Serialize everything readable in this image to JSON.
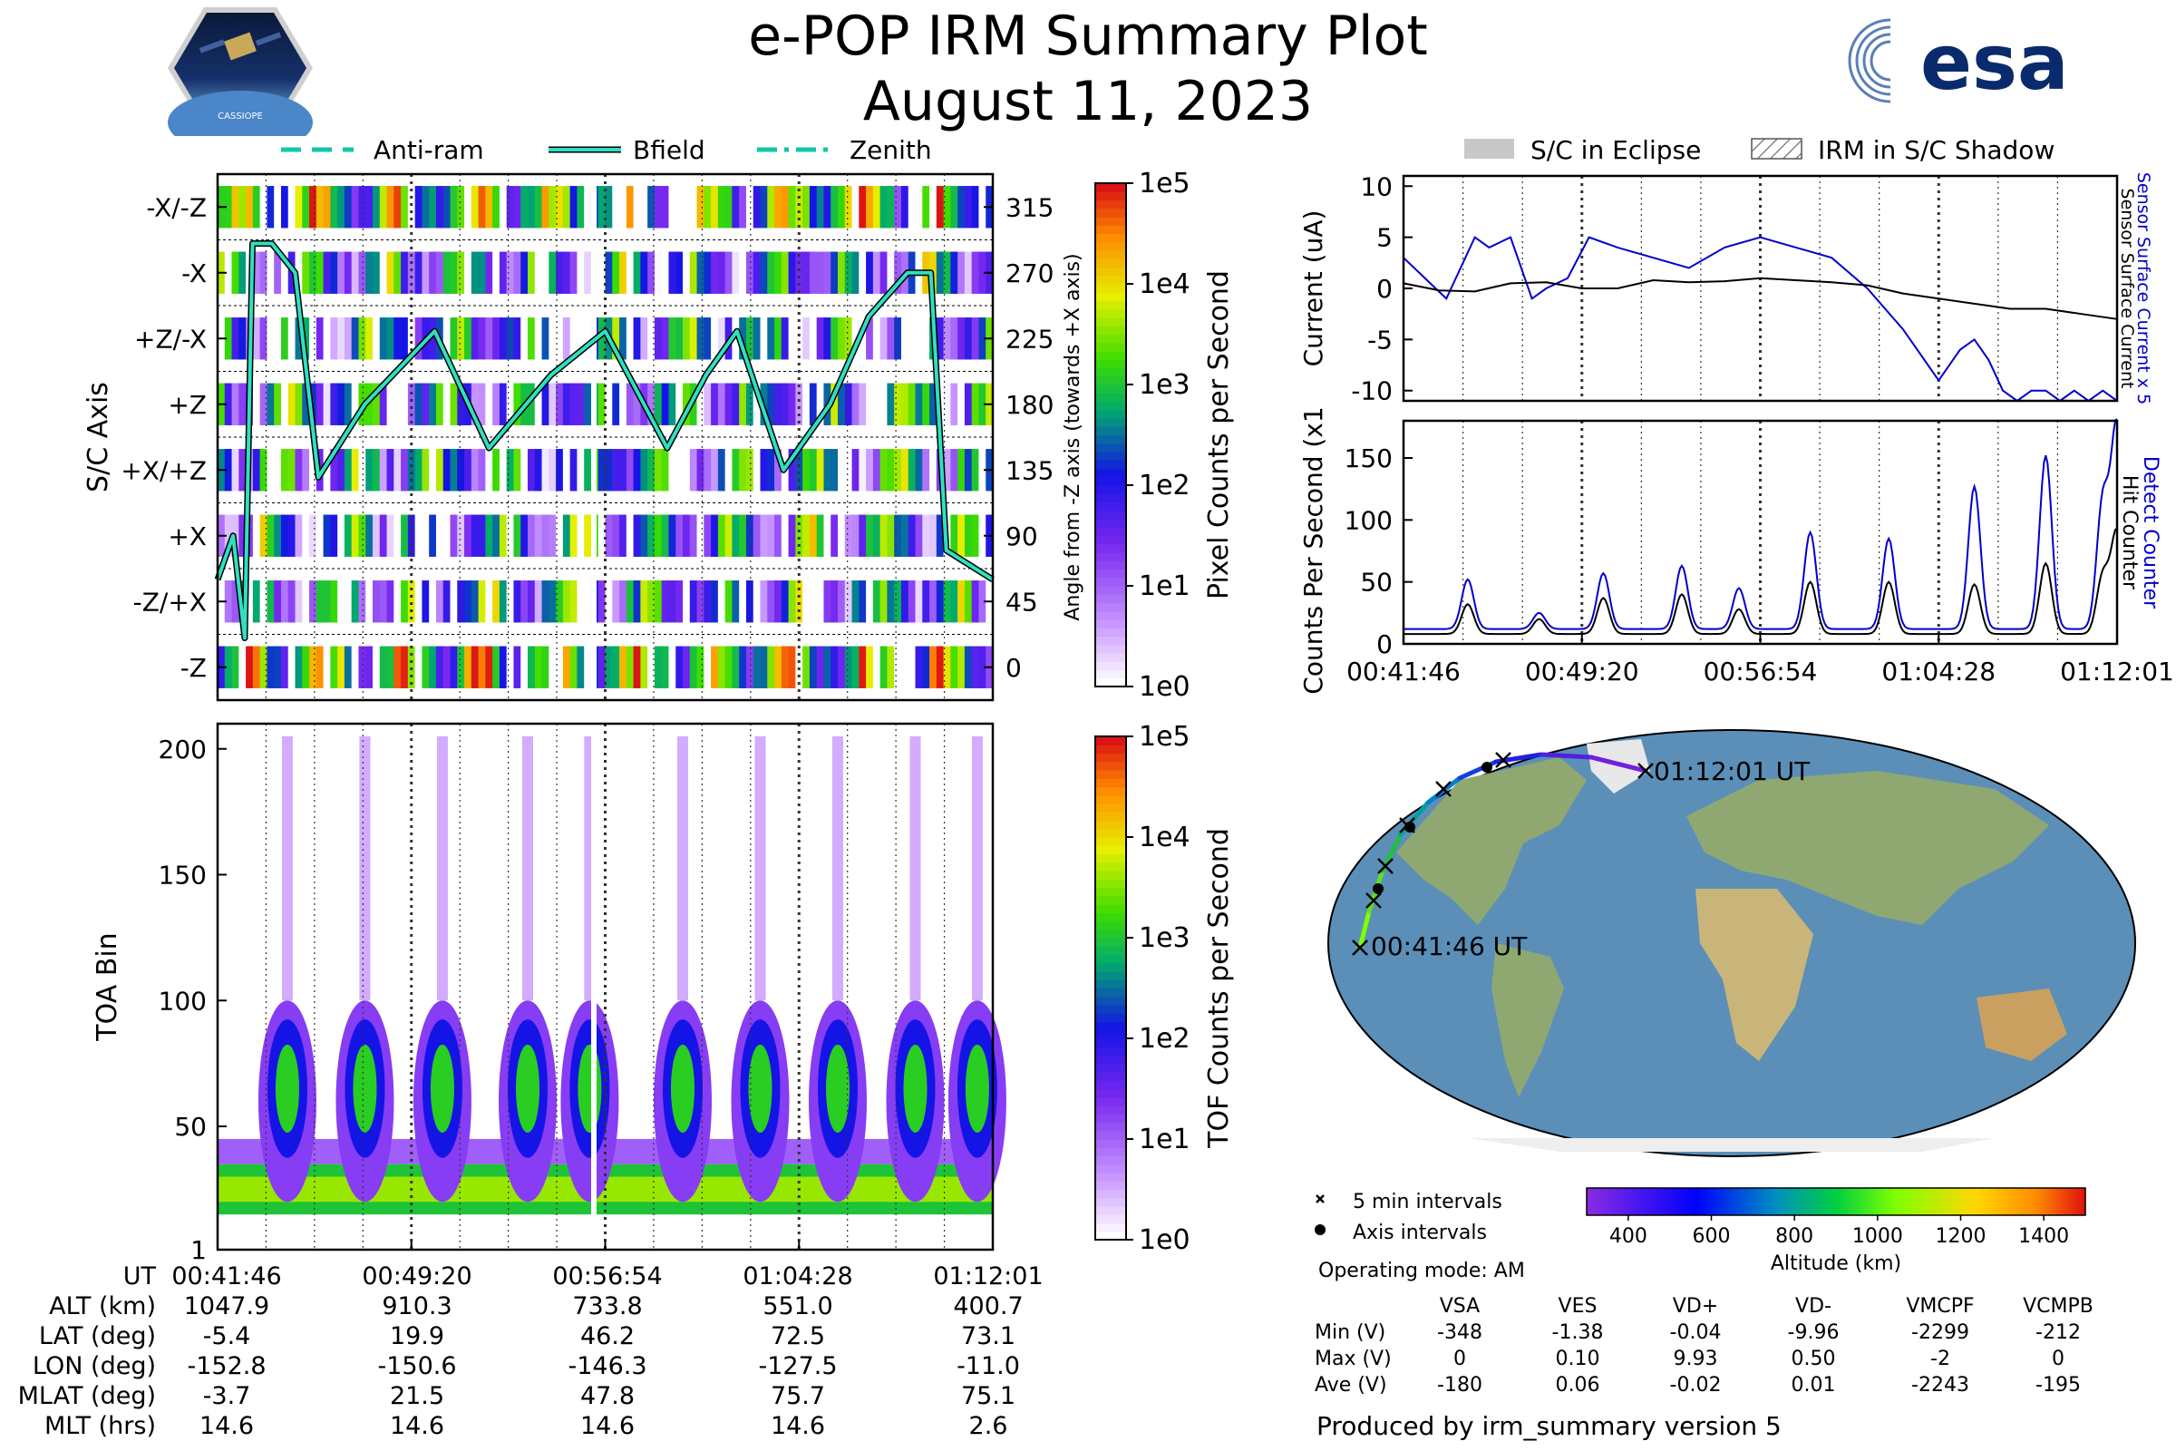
{
  "header": {
    "title": "e-POP IRM Summary Plot",
    "date": "August 11, 2023",
    "left_logo_text": "CASSIOPE",
    "right_logo_text": "esa"
  },
  "legend_top_left": {
    "anti_ram": "Anti-ram",
    "bfield": "Bfield",
    "zenith": "Zenith"
  },
  "legend_top_right": {
    "eclipse": "S/C in Eclipse",
    "shadow": "IRM in S/C Shadow"
  },
  "colors": {
    "sensor_current": "#0000cc",
    "hit_counter": "#000000",
    "detect_counter": "#0000cc",
    "bfield": "#2fe0c0",
    "trajectory_low": "#7fff00",
    "trajectory_high": "#8a2be2"
  },
  "chart_data": [
    {
      "type": "heatmap",
      "name": "pixel-panel",
      "ylabel": "S/C Axis",
      "y_ticks_left": [
        "-X/-Z",
        "-X",
        "+Z/-X",
        "+Z",
        "+X/+Z",
        "+X",
        "-Z/+X",
        "-Z"
      ],
      "y_ticks_right": [
        "315",
        "270",
        "225",
        "180",
        "135",
        "90",
        "45",
        "0"
      ],
      "ylabel_right": "Angle from -Z axis (towards +X axis)",
      "colorbar_label": "Pixel Counts per Second",
      "colorbar_ticks": [
        "1e5",
        "1e4",
        "1e3",
        "1e2",
        "1e1",
        "1e0"
      ],
      "bfield_angle_deg": [
        {
          "t": 0.0,
          "v": 60
        },
        {
          "t": 0.02,
          "v": 90
        },
        {
          "t": 0.035,
          "v": 20
        },
        {
          "t": 0.045,
          "v": 290
        },
        {
          "t": 0.07,
          "v": 290
        },
        {
          "t": 0.1,
          "v": 270
        },
        {
          "t": 0.13,
          "v": 130
        },
        {
          "t": 0.19,
          "v": 180
        },
        {
          "t": 0.28,
          "v": 230
        },
        {
          "t": 0.35,
          "v": 150
        },
        {
          "t": 0.43,
          "v": 200
        },
        {
          "t": 0.5,
          "v": 230
        },
        {
          "t": 0.58,
          "v": 150
        },
        {
          "t": 0.63,
          "v": 200
        },
        {
          "t": 0.67,
          "v": 230
        },
        {
          "t": 0.73,
          "v": 135
        },
        {
          "t": 0.79,
          "v": 180
        },
        {
          "t": 0.84,
          "v": 240
        },
        {
          "t": 0.89,
          "v": 270
        },
        {
          "t": 0.92,
          "v": 270
        },
        {
          "t": 0.94,
          "v": 80
        },
        {
          "t": 1.0,
          "v": 60
        }
      ]
    },
    {
      "type": "heatmap",
      "name": "toa-panel",
      "ylabel": "TOA Bin",
      "y_ticks": [
        1,
        50,
        100,
        150,
        200
      ],
      "ylim": [
        1,
        210
      ],
      "colorbar_label": "TOF Counts per Second",
      "colorbar_ticks": [
        "1e5",
        "1e4",
        "1e3",
        "1e2",
        "1e1",
        "1e0"
      ],
      "burst_times_frac": [
        0.09,
        0.19,
        0.29,
        0.4,
        0.48,
        0.6,
        0.7,
        0.8,
        0.9,
        0.98
      ]
    },
    {
      "type": "line",
      "name": "current-panel",
      "ylabel": "Current (uA)",
      "ylim": [
        -11,
        11
      ],
      "y_ticks": [
        10,
        5,
        0,
        -5,
        -10
      ],
      "series": [
        {
          "name": "Sensor Surface Current x 5",
          "color": "#0000cc",
          "x": [
            0,
            0.03,
            0.06,
            0.1,
            0.12,
            0.15,
            0.18,
            0.2,
            0.23,
            0.26,
            0.3,
            0.35,
            0.4,
            0.45,
            0.5,
            0.55,
            0.6,
            0.65,
            0.7,
            0.75,
            0.78,
            0.8,
            0.82,
            0.84,
            0.86,
            0.88,
            0.9,
            0.92,
            0.94,
            0.96,
            0.98,
            1.0
          ],
          "y": [
            3,
            1,
            -1,
            5,
            4,
            5,
            -1,
            0,
            1,
            5,
            4,
            3,
            2,
            4,
            5,
            4,
            3,
            0,
            -4,
            -9,
            -6,
            -5,
            -7,
            -10,
            -11,
            -10,
            -10,
            -11,
            -10,
            -11,
            -10,
            -11
          ]
        },
        {
          "name": "Sensor Surface Current",
          "color": "#000000",
          "x": [
            0,
            0.05,
            0.1,
            0.15,
            0.2,
            0.25,
            0.3,
            0.35,
            0.4,
            0.45,
            0.5,
            0.55,
            0.6,
            0.65,
            0.7,
            0.75,
            0.8,
            0.85,
            0.9,
            0.95,
            1.0
          ],
          "y": [
            0.5,
            -0.2,
            -0.3,
            0.5,
            0.6,
            0,
            0,
            0.8,
            0.6,
            0.7,
            1,
            0.8,
            0.6,
            0.3,
            -0.5,
            -1,
            -1.5,
            -2,
            -2,
            -2.5,
            -3
          ]
        }
      ],
      "right_label_blue": "Sensor Surface Current x 5",
      "right_label_black": "Sensor Surface Current"
    },
    {
      "type": "line",
      "name": "counts-panel",
      "ylabel": "Counts Per Second (x10³)",
      "ylim": [
        0,
        180
      ],
      "y_ticks": [
        0,
        50,
        100,
        150
      ],
      "x_ticks": [
        "00:41:46",
        "00:49:20",
        "00:56:54",
        "01:04:28",
        "01:12:01"
      ],
      "peaks_frac": [
        0.09,
        0.19,
        0.28,
        0.39,
        0.47,
        0.57,
        0.68,
        0.8,
        0.9,
        0.98,
        1.0
      ],
      "series": [
        {
          "name": "Detect Counter",
          "color": "#0000cc",
          "peak_values": [
            52,
            25,
            57,
            63,
            45,
            90,
            85,
            127,
            152,
            115,
            175
          ]
        },
        {
          "name": "Hit Counter",
          "color": "#000000",
          "peak_values": [
            32,
            20,
            37,
            40,
            28,
            50,
            50,
            48,
            65,
            55,
            90
          ]
        }
      ],
      "right_label_blue": "Detect Counter",
      "right_label_black": "Hit Counter"
    },
    {
      "type": "scatter",
      "name": "map-panel",
      "start_label": "00:41:46 UT",
      "end_label": "01:12:01 UT",
      "legend_cross": "5 min intervals",
      "legend_dot": "Axis intervals",
      "operating_mode": "Operating mode: AM",
      "colorbar_label": "Altitude (km)",
      "colorbar_ticks": [
        "400",
        "600",
        "800",
        "1000",
        "1200",
        "1400"
      ]
    }
  ],
  "time_table": {
    "row_labels": [
      "UT",
      "ALT (km)",
      "LAT (deg)",
      "LON (deg)",
      "MLAT (deg)",
      "MLT (hrs)"
    ],
    "columns": [
      [
        "00:41:46",
        "1047.9",
        "-5.4",
        "-152.8",
        "-3.7",
        "14.6"
      ],
      [
        "00:49:20",
        "910.3",
        "19.9",
        "-150.6",
        "21.5",
        "14.6"
      ],
      [
        "00:56:54",
        "733.8",
        "46.2",
        "-146.3",
        "47.8",
        "14.6"
      ],
      [
        "01:04:28",
        "551.0",
        "72.5",
        "-127.5",
        "75.7",
        "14.6"
      ],
      [
        "01:12:01",
        "400.7",
        "73.1",
        "-11.0",
        "75.1",
        "2.6"
      ]
    ]
  },
  "voltage_table": {
    "headers": [
      "VSA",
      "VES",
      "VD+",
      "VD-",
      "VMCPF",
      "VCMPB"
    ],
    "rows": [
      {
        "label": "Min (V)",
        "values": [
          "-348",
          "-1.38",
          "-0.04",
          "-9.96",
          "-2299",
          "-212"
        ]
      },
      {
        "label": "Max (V)",
        "values": [
          "0",
          "0.10",
          "9.93",
          "0.50",
          "-2",
          "0"
        ]
      },
      {
        "label": "Ave (V)",
        "values": [
          "-180",
          "0.06",
          "-0.02",
          "0.01",
          "-2243",
          "-195"
        ]
      }
    ]
  },
  "footer": "Produced by irm_summary version 5"
}
